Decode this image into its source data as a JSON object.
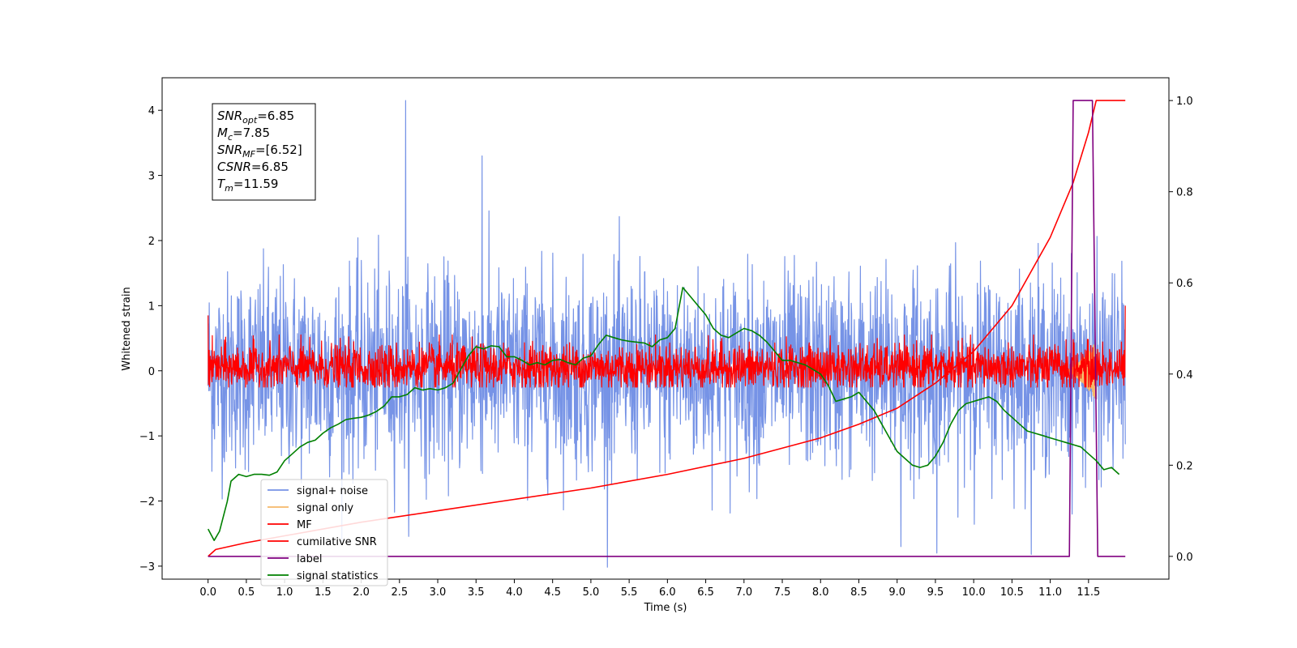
{
  "chart_data": {
    "type": "line",
    "xlabel": "Time (s)",
    "ylabel": "Whitened strain",
    "xlim": [
      -0.6,
      12.55
    ],
    "ylim": [
      -3.2,
      4.5
    ],
    "y2lim": [
      -0.05,
      1.05
    ],
    "x_ticks": [
      "0.0",
      "0.5",
      "1.0",
      "1.5",
      "2.0",
      "2.5",
      "3.0",
      "3.5",
      "4.0",
      "4.5",
      "5.0",
      "5.5",
      "6.0",
      "6.5",
      "7.0",
      "7.5",
      "8.0",
      "8.5",
      "9.0",
      "9.5",
      "10.0",
      "10.5",
      "11.0",
      "11.5"
    ],
    "y_ticks": [
      "−3",
      "−2",
      "−1",
      "0",
      "1",
      "2",
      "3",
      "4"
    ],
    "y2_ticks": [
      "0.0",
      "0.2",
      "0.4",
      "0.6",
      "0.8",
      "1.0"
    ],
    "annotation": {
      "lines": [
        {
          "base": "SNR",
          "sub": "opt",
          "value": "=6.85"
        },
        {
          "base": "M",
          "sub": "c",
          "value": "=7.85"
        },
        {
          "base": "SNR",
          "sub": "MF",
          "value": "=[6.52]"
        },
        {
          "base": "CSNR",
          "sub": "",
          "value": "=6.85"
        },
        {
          "base": "T",
          "sub": "m",
          "value": "=11.59"
        }
      ]
    },
    "legend_placement": "lower-left",
    "series": [
      {
        "name": "signal+ noise",
        "color": "#7693e6",
        "axis": "left",
        "style": "noise",
        "x_range": [
          0.0,
          11.98
        ],
        "std": 0.75,
        "spikes_x": [
          2.58,
          3.58,
          9.05,
          9.52
        ],
        "spikes_y": [
          4.15,
          3.3,
          -2.7,
          -2.8
        ]
      },
      {
        "name": "signal only",
        "color": "#f5b86a",
        "axis": "left",
        "style": "chirp",
        "x_range": [
          11.2,
          11.6
        ],
        "peak": 0.45
      },
      {
        "name": "MF",
        "color": "#ff0000",
        "axis": "left",
        "style": "noise",
        "x_range": [
          0.0,
          11.98
        ],
        "std": 0.18
      },
      {
        "name": "cumilative SNR",
        "color": "#ff0000",
        "axis": "right",
        "x": [
          0.0,
          0.1,
          0.5,
          1.0,
          2.0,
          3.0,
          4.0,
          5.0,
          6.0,
          7.0,
          8.0,
          8.5,
          9.0,
          9.5,
          10.0,
          10.5,
          11.0,
          11.3,
          11.5,
          11.6,
          11.98
        ],
        "y": [
          0.0,
          0.015,
          0.03,
          0.045,
          0.075,
          0.1,
          0.125,
          0.15,
          0.18,
          0.215,
          0.26,
          0.29,
          0.325,
          0.38,
          0.45,
          0.55,
          0.7,
          0.82,
          0.93,
          1.0,
          1.0
        ]
      },
      {
        "name": "label",
        "color": "#800080",
        "axis": "right",
        "x": [
          0.0,
          11.25,
          11.3,
          11.55,
          11.62,
          11.98
        ],
        "y": [
          0,
          0,
          1,
          1,
          0,
          0
        ]
      },
      {
        "name": "signal statistics",
        "color": "#008000",
        "axis": "right",
        "x": [
          0.0,
          0.08,
          0.15,
          0.25,
          0.3,
          0.4,
          0.5,
          0.6,
          0.7,
          0.8,
          0.9,
          1.0,
          1.1,
          1.2,
          1.3,
          1.4,
          1.5,
          1.6,
          1.7,
          1.8,
          1.9,
          2.0,
          2.1,
          2.2,
          2.3,
          2.4,
          2.5,
          2.6,
          2.7,
          2.8,
          2.9,
          3.0,
          3.1,
          3.2,
          3.3,
          3.4,
          3.5,
          3.6,
          3.7,
          3.8,
          3.9,
          4.0,
          4.1,
          4.2,
          4.3,
          4.4,
          4.5,
          4.6,
          4.7,
          4.8,
          4.9,
          5.0,
          5.1,
          5.2,
          5.3,
          5.4,
          5.5,
          5.6,
          5.7,
          5.8,
          5.9,
          6.0,
          6.1,
          6.2,
          6.3,
          6.4,
          6.5,
          6.6,
          6.7,
          6.8,
          6.9,
          7.0,
          7.1,
          7.2,
          7.3,
          7.4,
          7.5,
          7.6,
          7.7,
          7.8,
          7.9,
          8.0,
          8.1,
          8.2,
          8.3,
          8.4,
          8.5,
          8.6,
          8.7,
          8.8,
          8.9,
          9.0,
          9.1,
          9.2,
          9.3,
          9.4,
          9.5,
          9.6,
          9.7,
          9.8,
          9.9,
          10.0,
          10.1,
          10.2,
          10.3,
          10.4,
          10.5,
          10.6,
          10.7,
          10.8,
          10.9,
          11.0,
          11.1,
          11.2,
          11.3,
          11.4,
          11.5,
          11.6,
          11.7,
          11.8,
          11.9
        ],
        "y": [
          0.06,
          0.035,
          0.055,
          0.12,
          0.165,
          0.18,
          0.175,
          0.18,
          0.18,
          0.178,
          0.185,
          0.21,
          0.225,
          0.24,
          0.25,
          0.255,
          0.27,
          0.282,
          0.29,
          0.3,
          0.303,
          0.305,
          0.31,
          0.318,
          0.33,
          0.35,
          0.35,
          0.355,
          0.37,
          0.365,
          0.368,
          0.365,
          0.37,
          0.38,
          0.41,
          0.44,
          0.46,
          0.455,
          0.462,
          0.46,
          0.438,
          0.438,
          0.43,
          0.42,
          0.425,
          0.42,
          0.43,
          0.432,
          0.425,
          0.42,
          0.435,
          0.44,
          0.465,
          0.485,
          0.48,
          0.475,
          0.472,
          0.47,
          0.468,
          0.46,
          0.475,
          0.48,
          0.5,
          0.59,
          0.57,
          0.55,
          0.53,
          0.5,
          0.485,
          0.48,
          0.49,
          0.5,
          0.495,
          0.485,
          0.47,
          0.45,
          0.43,
          0.43,
          0.425,
          0.42,
          0.41,
          0.4,
          0.375,
          0.34,
          0.345,
          0.35,
          0.36,
          0.34,
          0.32,
          0.29,
          0.26,
          0.23,
          0.215,
          0.2,
          0.195,
          0.2,
          0.22,
          0.25,
          0.29,
          0.32,
          0.335,
          0.34,
          0.345,
          0.35,
          0.34,
          0.32,
          0.305,
          0.29,
          0.275,
          0.27,
          0.265,
          0.26,
          0.255,
          0.25,
          0.245,
          0.24,
          0.225,
          0.21,
          0.19,
          0.195,
          0.18
        ]
      }
    ]
  }
}
